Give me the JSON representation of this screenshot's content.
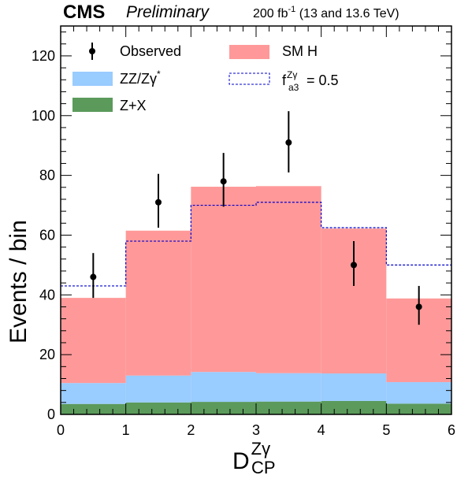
{
  "chart_data": {
    "type": "bar",
    "stacked": true,
    "x_bin_edges": [
      0,
      1,
      2,
      3,
      4,
      5,
      6
    ],
    "xlim": [
      0,
      6
    ],
    "ylim": [
      0,
      130
    ],
    "x_ticks": [
      0,
      1,
      2,
      3,
      4,
      5,
      6
    ],
    "y_ticks": [
      0,
      20,
      40,
      60,
      80,
      100,
      120
    ],
    "ylabel": "Events / bin",
    "xlabel": {
      "main": "D",
      "sub": "CP",
      "sup": "Zγ"
    },
    "series": [
      {
        "name": "Z+X",
        "color": "#5b9a5b",
        "values": [
          3.5,
          4.0,
          4.2,
          4.3,
          4.5,
          3.6
        ]
      },
      {
        "name": "ZZ/Zγ*",
        "color": "#99ccff",
        "values": [
          7.0,
          9.0,
          10.0,
          9.5,
          9.2,
          7.2
        ]
      },
      {
        "name": "SM H",
        "color": "#ff9999",
        "values": [
          28.5,
          48.5,
          62.0,
          62.6,
          48.5,
          28.0
        ]
      }
    ],
    "alternative": {
      "name": "f_a3^Zγ = 0.5",
      "color": "#0000cc",
      "style": "dashed-step",
      "values": [
        43,
        58,
        70,
        71,
        62.5,
        50
      ]
    },
    "observed": {
      "name": "Observed",
      "x": [
        0.5,
        1.5,
        2.5,
        3.5,
        4.5,
        5.5
      ],
      "y": [
        46,
        71,
        78,
        91,
        50,
        36
      ],
      "err_low": [
        7,
        8.5,
        8.5,
        10,
        7,
        6
      ],
      "err_high": [
        8,
        9.5,
        9.5,
        10.5,
        8,
        7
      ]
    }
  },
  "header": {
    "cms": "CMS",
    "preliminary": "Preliminary",
    "lumi_prefix": "200 fb",
    "lumi_exp": "-1",
    "lumi_suffix": " (13 and 13.6 TeV)"
  },
  "legend": {
    "observed": "Observed",
    "smh": "SM H",
    "zz": "ZZ/Zγ",
    "zz_sup": "*",
    "zx": "Z+X",
    "alt_main": "f",
    "alt_sup": "Zγ",
    "alt_sub": "a3",
    "alt_value": " = 0.5"
  }
}
